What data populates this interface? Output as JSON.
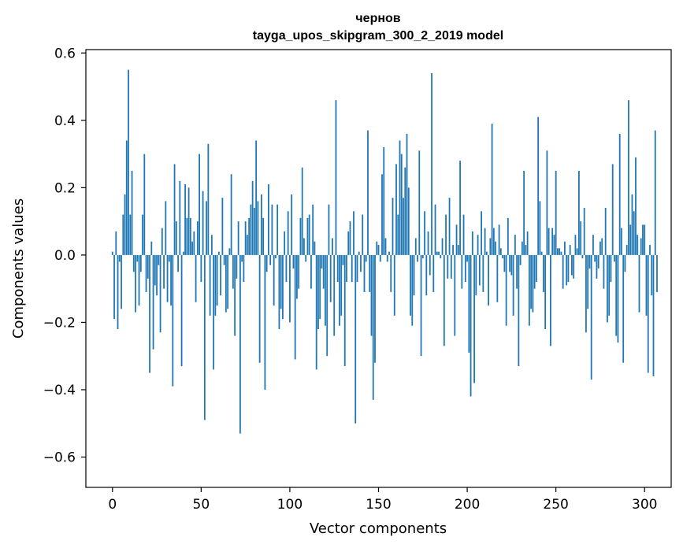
{
  "chart_data": {
    "type": "bar",
    "title": "чернов",
    "subtitle": "tayga_upos_skipgram_300_2_2019 model",
    "xlabel": "Vector components",
    "ylabel": "Components values",
    "xlim": [
      -15,
      315
    ],
    "ylim": [
      -0.69,
      0.61
    ],
    "xticks": [
      0,
      50,
      100,
      150,
      200,
      250,
      300
    ],
    "xtick_labels": [
      "0",
      "50",
      "100",
      "150",
      "200",
      "250",
      "300"
    ],
    "yticks": [
      -0.6,
      -0.4,
      -0.2,
      0.0,
      0.2,
      0.4,
      0.6
    ],
    "ytick_labels": [
      "−0.6",
      "−0.4",
      "−0.2",
      "0.0",
      "0.2",
      "0.4",
      "0.6"
    ],
    "bar_color": "#1f77b4",
    "grid": false,
    "values": [
      0.01,
      -0.19,
      0.07,
      -0.22,
      -0.02,
      -0.16,
      0.12,
      0.18,
      0.34,
      0.55,
      0.12,
      0.25,
      -0.05,
      -0.17,
      -0.02,
      -0.15,
      -0.05,
      0.12,
      0.3,
      -0.11,
      -0.07,
      -0.35,
      0.04,
      -0.28,
      -0.09,
      -0.12,
      -0.03,
      -0.23,
      0.08,
      -0.1,
      0.16,
      -0.14,
      -0.02,
      -0.15,
      -0.39,
      0.27,
      0.1,
      -0.05,
      0.22,
      -0.33,
      0.01,
      0.21,
      0.11,
      0.2,
      0.11,
      0.04,
      0.07,
      -0.14,
      0.1,
      0.3,
      -0.08,
      0.19,
      -0.49,
      0.16,
      0.33,
      -0.18,
      0.06,
      -0.34,
      -0.18,
      -0.15,
      0.01,
      -0.12,
      0.17,
      -0.03,
      -0.17,
      -0.16,
      0.02,
      0.24,
      -0.1,
      -0.24,
      -0.07,
      0.1,
      -0.53,
      -0.02,
      -0.08,
      0.1,
      0.06,
      0.11,
      0.15,
      0.22,
      0.14,
      0.34,
      0.16,
      -0.32,
      0.18,
      0.11,
      -0.4,
      -0.05,
      0.21,
      -0.03,
      0.15,
      -0.15,
      -0.01,
      0.15,
      -0.22,
      -0.16,
      -0.19,
      0.07,
      -0.08,
      0.13,
      -0.2,
      0.18,
      -0.04,
      -0.31,
      -0.13,
      -0.1,
      0.11,
      0.26,
      0.05,
      -0.02,
      0.11,
      0.12,
      -0.1,
      0.15,
      0.04,
      -0.34,
      -0.22,
      -0.19,
      -0.04,
      -0.1,
      -0.21,
      -0.3,
      0.15,
      -0.14,
      0.05,
      -0.24,
      0.46,
      -0.08,
      -0.21,
      -0.18,
      -0.03,
      -0.33,
      -0.08,
      0.07,
      0.1,
      -0.08,
      0.13,
      -0.5,
      -0.08,
      0.01,
      -0.05,
      0.12,
      -0.11,
      -0.02,
      0.37,
      -0.11,
      -0.24,
      -0.43,
      -0.32,
      0.04,
      0.03,
      -0.02,
      0.24,
      0.32,
      0.05,
      -0.02,
      0.01,
      -0.11,
      0.17,
      -0.18,
      0.27,
      0.12,
      0.34,
      0.3,
      0.17,
      0.26,
      0.36,
      0.2,
      -0.18,
      -0.21,
      -0.12,
      0.05,
      -0.02,
      0.31,
      -0.3,
      -0.01,
      0.13,
      -0.12,
      0.07,
      -0.06,
      0.54,
      -0.11,
      0.15,
      0.01,
      0.01,
      -0.01,
      0.05,
      -0.27,
      0.12,
      -0.07,
      0.17,
      -0.07,
      0.03,
      -0.24,
      0.09,
      0.03,
      0.28,
      -0.1,
      0.12,
      -0.08,
      -0.02,
      -0.29,
      -0.42,
      0.07,
      -0.38,
      -0.12,
      0.06,
      -0.09,
      0.13,
      -0.11,
      0.08,
      0.01,
      -0.15,
      0.05,
      0.39,
      0.08,
      0.04,
      -0.14,
      0.09,
      0.02,
      -0.01,
      -0.05,
      -0.21,
      0.11,
      -0.05,
      -0.06,
      -0.18,
      0.06,
      -0.1,
      -0.33,
      -0.03,
      0.04,
      0.25,
      0.03,
      0.07,
      -0.21,
      -0.16,
      -0.17,
      -0.1,
      -0.08,
      0.41,
      0.16,
      0.01,
      -0.11,
      -0.22,
      0.31,
      0.08,
      -0.27,
      0.08,
      0.06,
      0.25,
      0.02,
      0.02,
      0.01,
      -0.1,
      0.04,
      -0.09,
      -0.08,
      0.03,
      -0.06,
      -0.07,
      0.06,
      0.02,
      0.25,
      0.1,
      -0.01,
      0.14,
      -0.23,
      -0.16,
      -0.04,
      -0.37,
      0.06,
      -0.02,
      -0.07,
      -0.04,
      0.04,
      0.05,
      -0.1,
      0.14,
      -0.2,
      -0.18,
      -0.08,
      0.27,
      -0.02,
      -0.24,
      -0.26,
      0.36,
      0.08,
      -0.32,
      -0.05,
      0.03,
      0.46,
      0.09,
      0.18,
      0.13,
      0.29,
      0.06,
      -0.17,
      0.05,
      0.09,
      0.09,
      -0.18,
      -0.35,
      0.03,
      -0.12,
      -0.36,
      0.37,
      -0.11
    ]
  }
}
